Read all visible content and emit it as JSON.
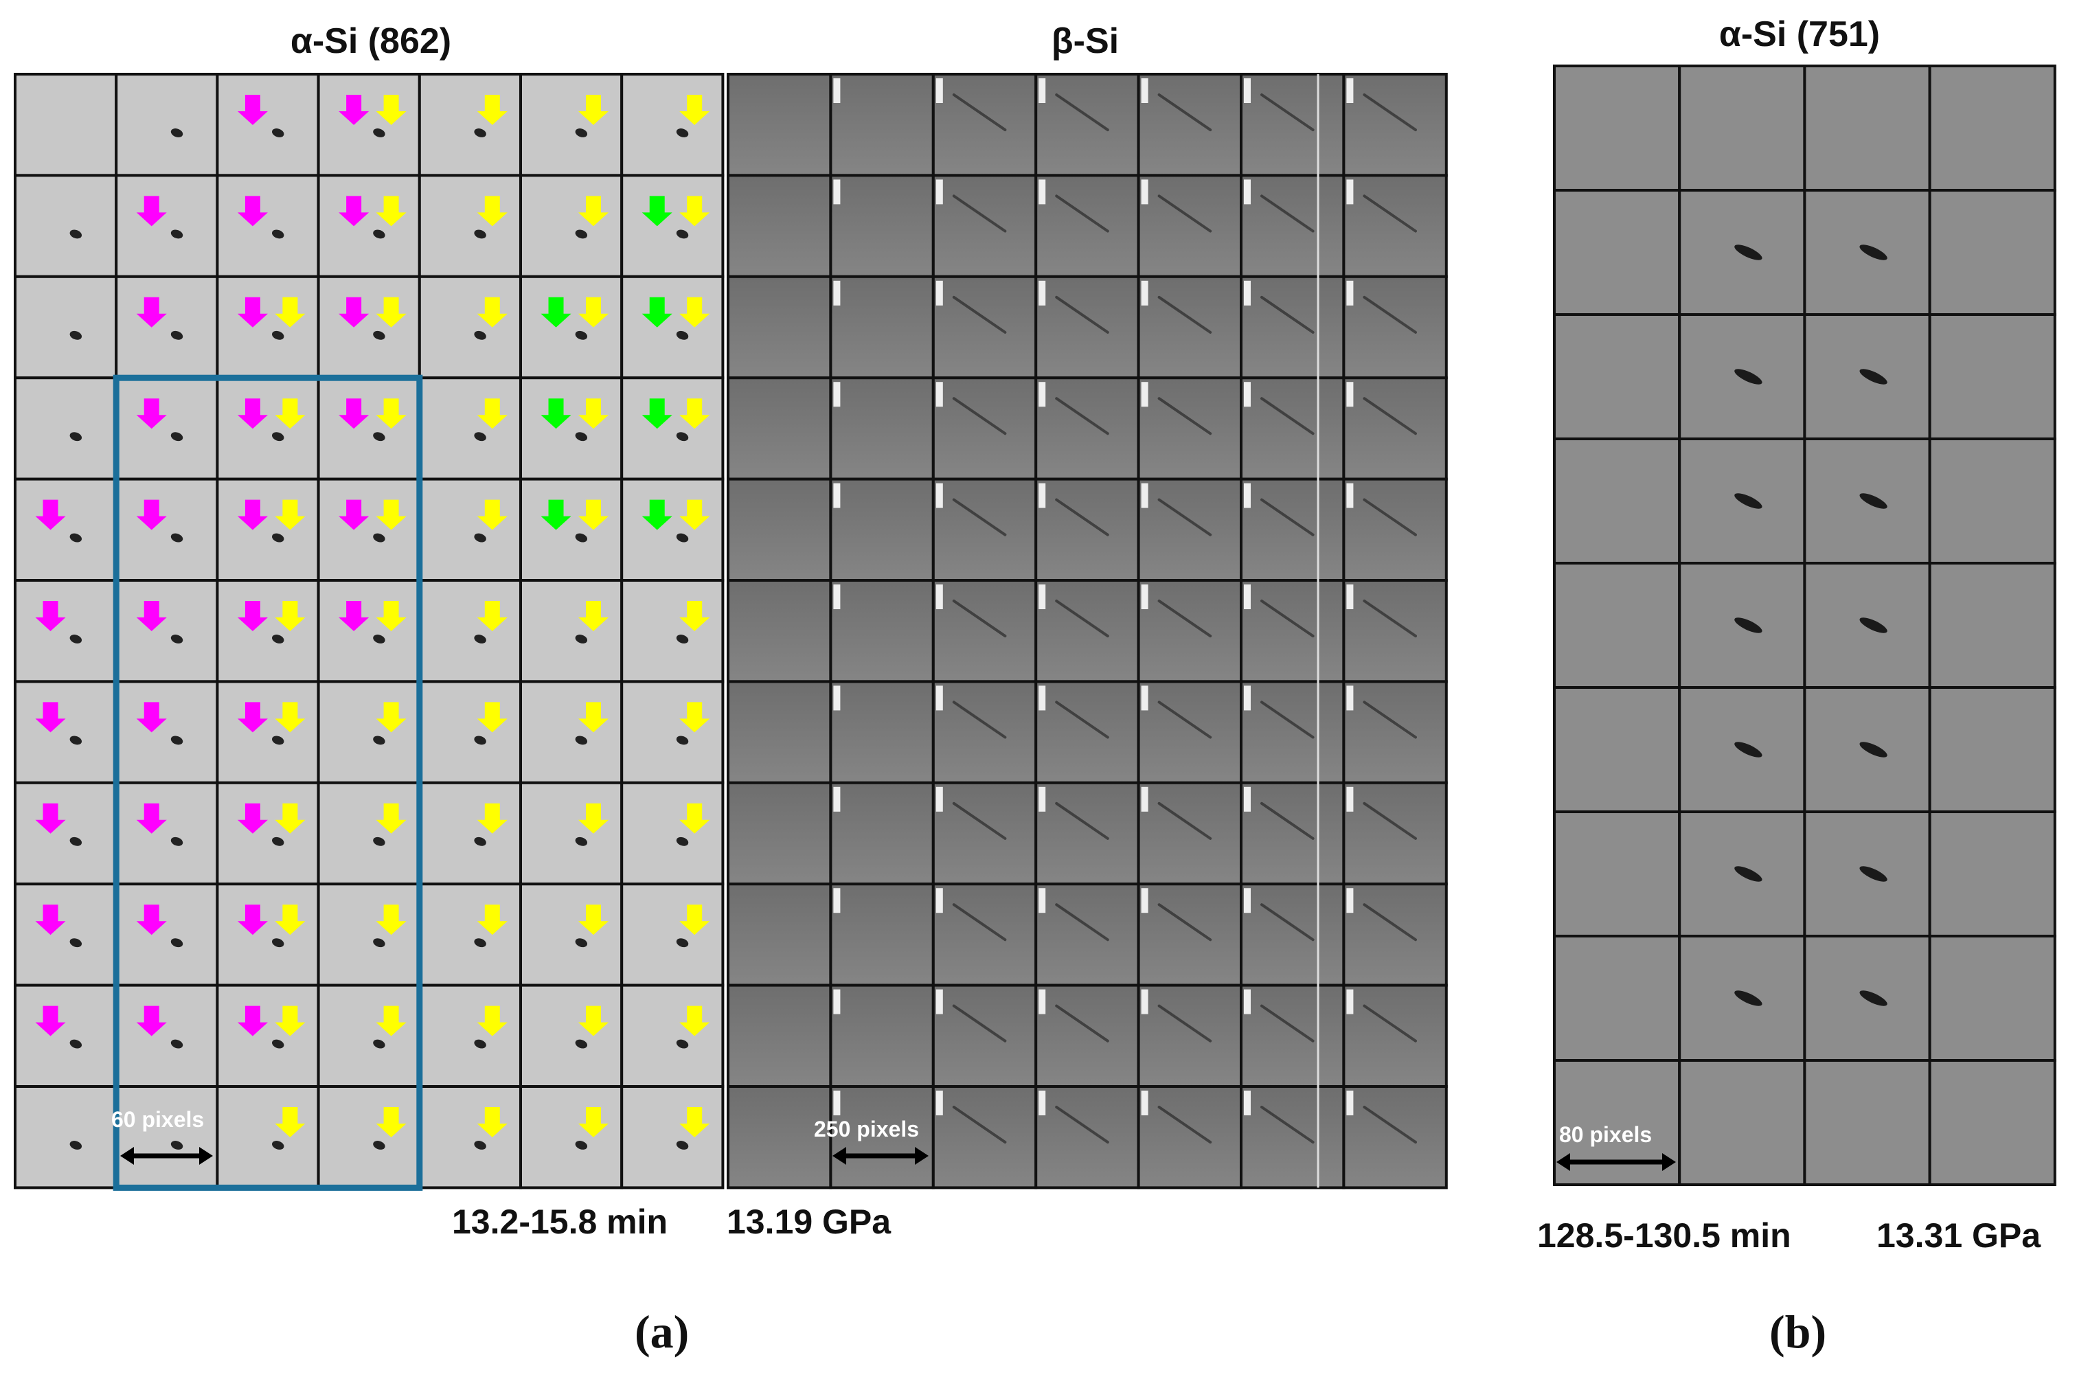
{
  "figure": {
    "panel_a": {
      "left_title": "α-Si (862)",
      "right_title": "β-Si",
      "caption_time": "13.2-15.8 min",
      "caption_pressure": "13.19 GPa",
      "left_scale_label": "60 pixels",
      "right_scale_label": "250 pixels",
      "sublabel": "(a)",
      "grid_rows": 11,
      "grid_cols": 7,
      "arrows": {
        "magenta": [
          [
            0,
            2
          ],
          [
            0,
            3
          ],
          [
            1,
            1
          ],
          [
            1,
            2
          ],
          [
            1,
            3
          ],
          [
            2,
            1
          ],
          [
            2,
            2
          ],
          [
            2,
            3
          ],
          [
            3,
            1
          ],
          [
            3,
            2
          ],
          [
            3,
            3
          ],
          [
            4,
            0
          ],
          [
            4,
            1
          ],
          [
            4,
            2
          ],
          [
            4,
            3
          ],
          [
            5,
            0
          ],
          [
            5,
            1
          ],
          [
            5,
            2
          ],
          [
            5,
            3
          ],
          [
            6,
            0
          ],
          [
            6,
            1
          ],
          [
            6,
            2
          ],
          [
            7,
            0
          ],
          [
            7,
            1
          ],
          [
            7,
            2
          ],
          [
            8,
            0
          ],
          [
            8,
            1
          ],
          [
            8,
            2
          ],
          [
            9,
            0
          ],
          [
            9,
            1
          ],
          [
            9,
            2
          ]
        ],
        "yellow": [
          [
            0,
            3
          ],
          [
            0,
            4
          ],
          [
            0,
            5
          ],
          [
            0,
            6
          ],
          [
            1,
            3
          ],
          [
            1,
            4
          ],
          [
            1,
            5
          ],
          [
            1,
            6
          ],
          [
            2,
            2
          ],
          [
            2,
            3
          ],
          [
            2,
            4
          ],
          [
            2,
            5
          ],
          [
            2,
            6
          ],
          [
            3,
            2
          ],
          [
            3,
            3
          ],
          [
            3,
            4
          ],
          [
            3,
            5
          ],
          [
            3,
            6
          ],
          [
            4,
            2
          ],
          [
            4,
            3
          ],
          [
            4,
            4
          ],
          [
            4,
            5
          ],
          [
            4,
            6
          ],
          [
            5,
            2
          ],
          [
            5,
            3
          ],
          [
            5,
            4
          ],
          [
            5,
            5
          ],
          [
            5,
            6
          ],
          [
            6,
            2
          ],
          [
            6,
            3
          ],
          [
            6,
            4
          ],
          [
            6,
            5
          ],
          [
            6,
            6
          ],
          [
            7,
            2
          ],
          [
            7,
            3
          ],
          [
            7,
            4
          ],
          [
            7,
            5
          ],
          [
            7,
            6
          ],
          [
            8,
            2
          ],
          [
            8,
            3
          ],
          [
            8,
            4
          ],
          [
            8,
            5
          ],
          [
            8,
            6
          ],
          [
            9,
            2
          ],
          [
            9,
            3
          ],
          [
            9,
            4
          ],
          [
            9,
            5
          ],
          [
            9,
            6
          ],
          [
            10,
            2
          ],
          [
            10,
            3
          ],
          [
            10,
            4
          ],
          [
            10,
            5
          ],
          [
            10,
            6
          ]
        ],
        "green": [
          [
            1,
            6
          ],
          [
            2,
            5
          ],
          [
            2,
            6
          ],
          [
            3,
            5
          ],
          [
            3,
            6
          ],
          [
            4,
            5
          ],
          [
            4,
            6
          ]
        ]
      },
      "highlight_box": {
        "row_start": 3,
        "row_end": 10,
        "col_start": 1,
        "col_end": 4
      }
    },
    "panel_b": {
      "title": "α-Si (751)",
      "caption_time": "128.5-130.5  min",
      "caption_pressure": "13.31 GPa",
      "scale_label": "80 pixels",
      "sublabel": "(b)",
      "grid_rows": 9,
      "grid_cols": 4
    },
    "colors": {
      "magenta_arrow": "#ff00ff",
      "yellow_arrow": "#ffff00",
      "green_arrow": "#00ff00",
      "highlight_box": "#1b6f9a",
      "tile_light": "#c8c8c8",
      "tile_dark": "#8a8a8a",
      "grid_line": "#111111"
    }
  }
}
